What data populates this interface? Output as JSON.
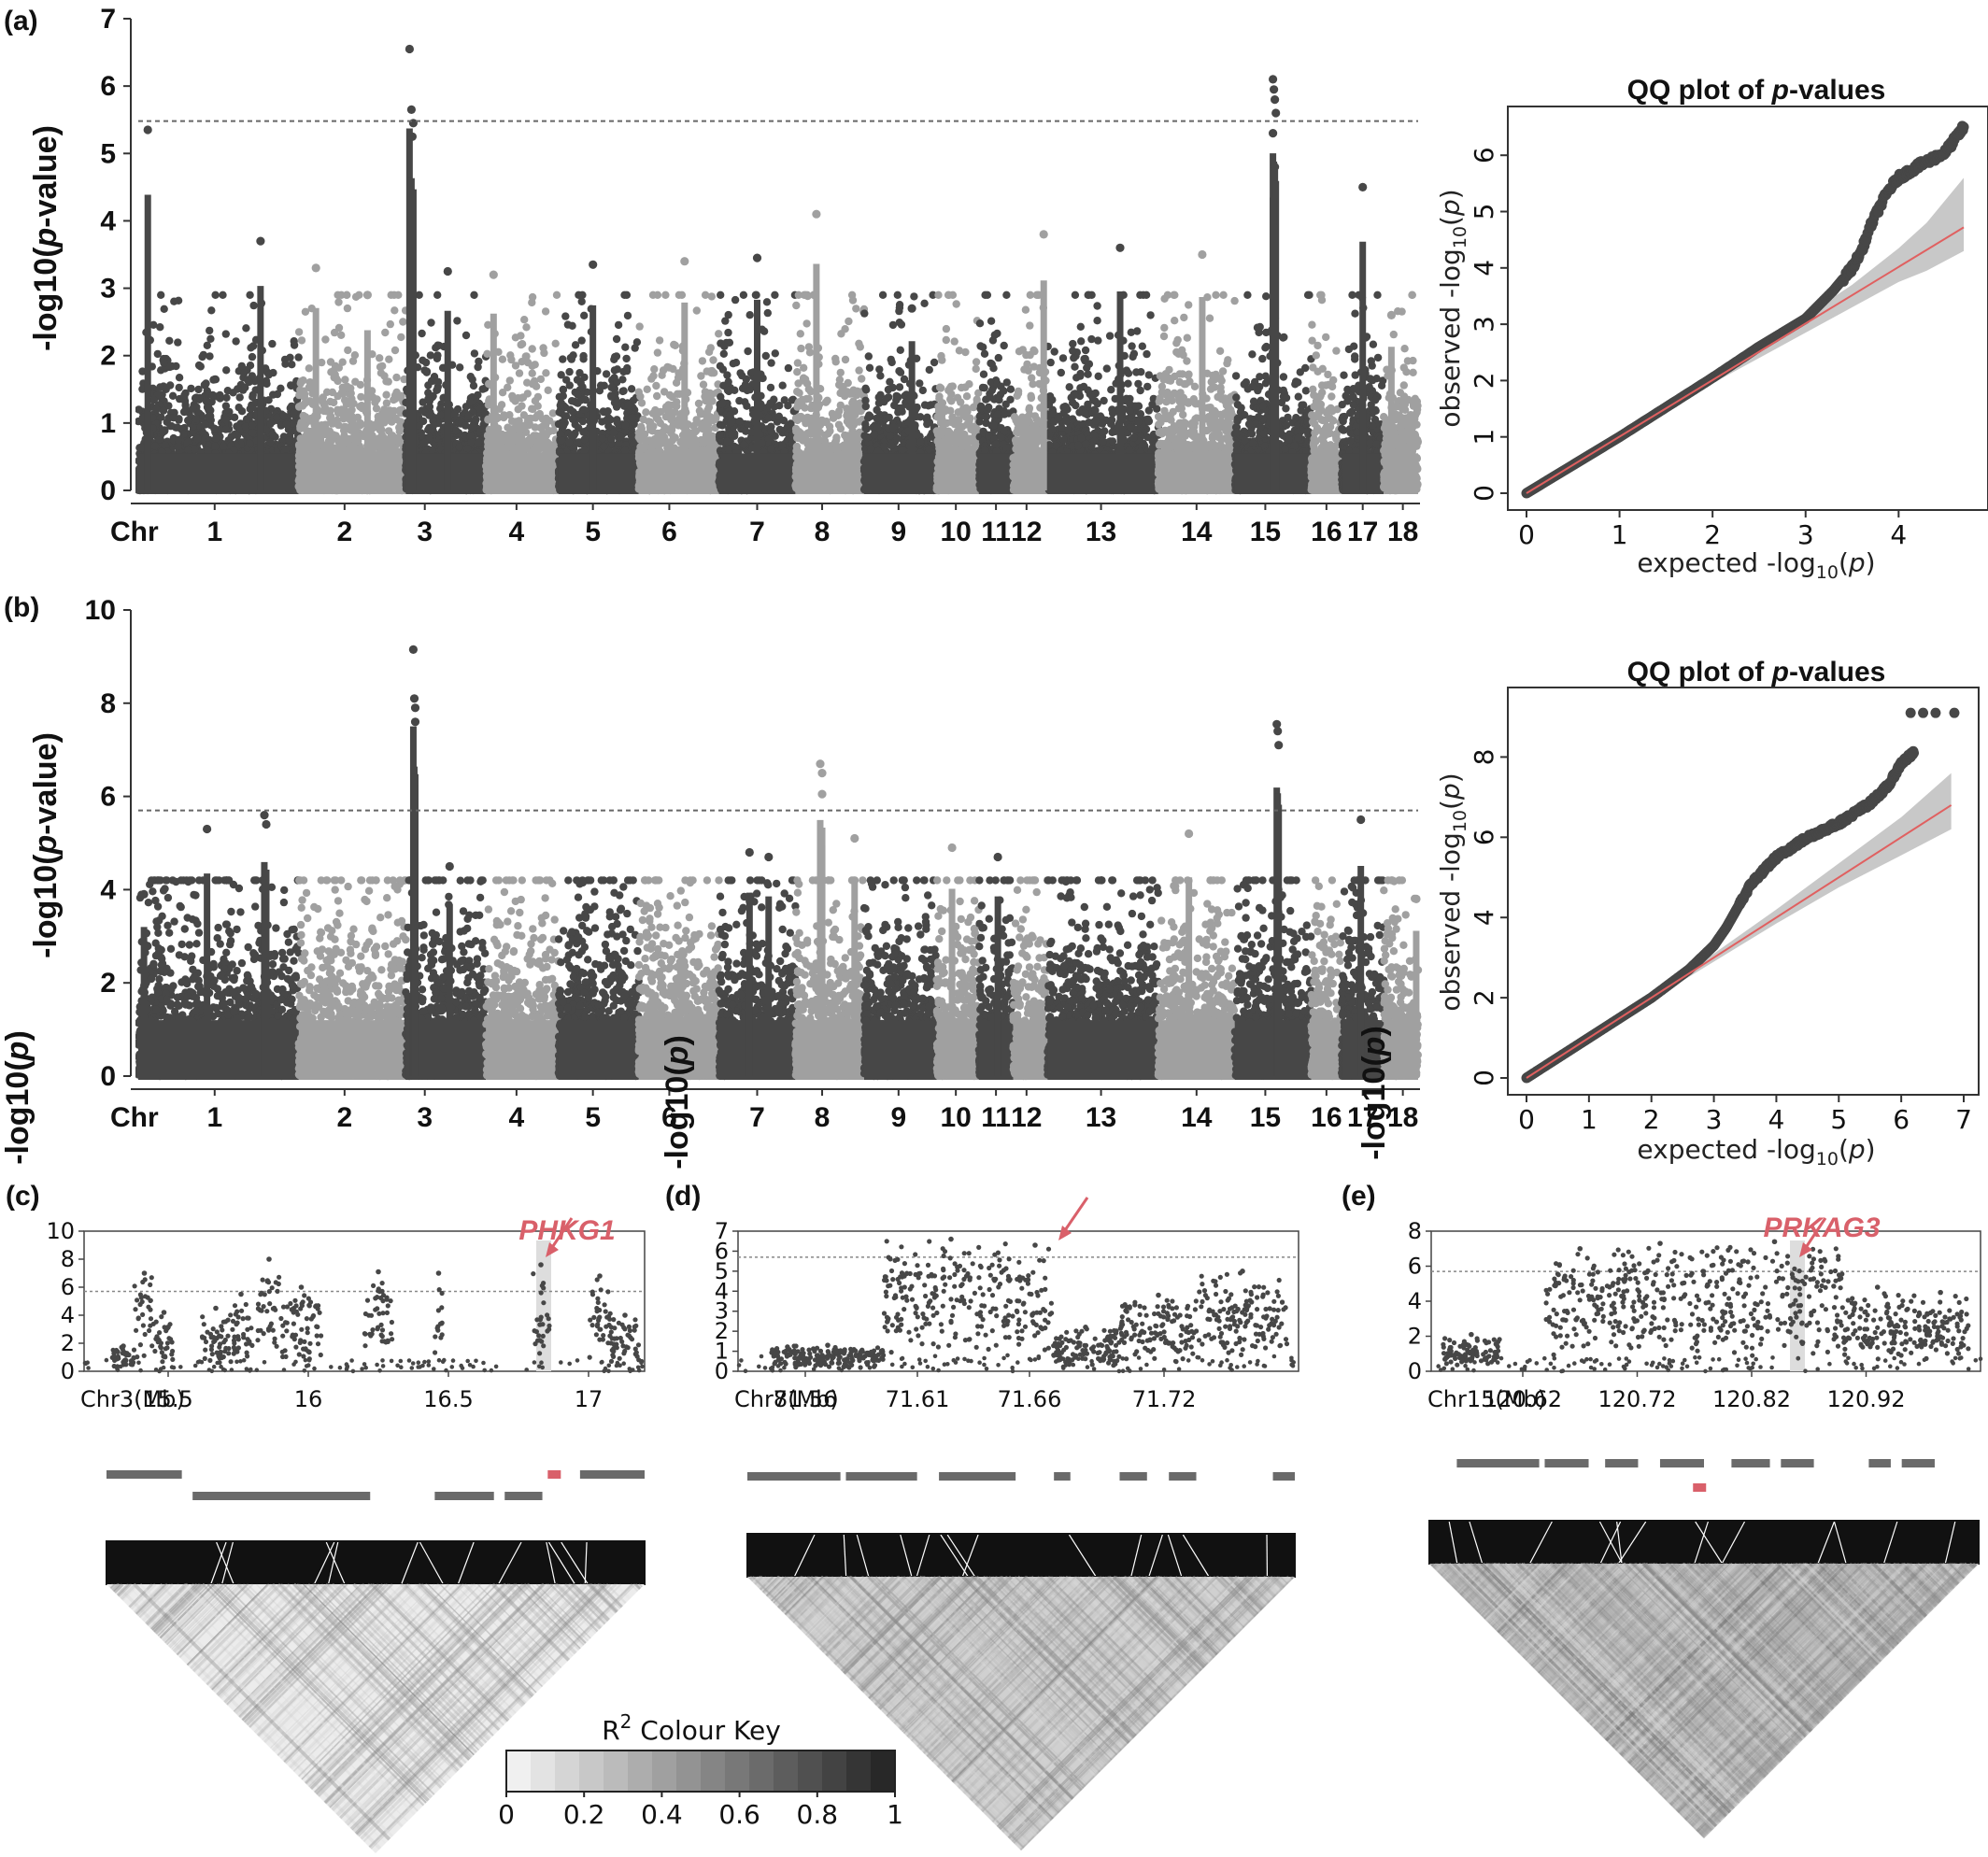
{
  "colors": {
    "dark": "#474747",
    "light": "#a0a0a0",
    "fit_line": "#e06060",
    "ci_band": "#c8c8c8",
    "highlight": "#d9606a",
    "threshold": "#666666"
  },
  "panels": {
    "a": "(a)",
    "b": "(b)",
    "c": "(c)",
    "d": "(d)",
    "e": "(e)"
  },
  "chart_data": [
    {
      "id": "manhattan_a",
      "type": "scatter",
      "subtype": "manhattan",
      "ylabel_pre": "-log10(",
      "ylabel_it": "p",
      "ylabel_post": "-value)",
      "x_first_label": "Chr",
      "chromosomes": [
        "1",
        "2",
        "3",
        "4",
        "5",
        "6",
        "7",
        "8",
        "9",
        "10",
        "11",
        "12",
        "13",
        "14",
        "15",
        "16",
        "17",
        "18"
      ],
      "chrom_spans": [
        [
          0,
          8.4
        ],
        [
          8.4,
          14.0
        ],
        [
          14.0,
          18.2
        ],
        [
          18.2,
          22.0
        ],
        [
          22.0,
          26.2
        ],
        [
          26.2,
          30.4
        ],
        [
          30.4,
          34.4
        ],
        [
          34.4,
          38.0
        ],
        [
          38.0,
          41.8
        ],
        [
          41.8,
          44.0
        ],
        [
          44.0,
          45.8
        ],
        [
          45.8,
          47.6
        ],
        [
          47.6,
          53.4
        ],
        [
          53.4,
          57.4
        ],
        [
          57.4,
          61.4
        ],
        [
          61.4,
          63.0
        ],
        [
          63.0,
          65.2
        ],
        [
          65.2,
          67.0
        ]
      ],
      "chrom_label_x": [
        4.0,
        10.8,
        15.0,
        19.8,
        23.8,
        27.8,
        32.4,
        35.8,
        39.8,
        42.8,
        44.9,
        46.5,
        50.4,
        55.4,
        59.0,
        62.2,
        64.1,
        66.2
      ],
      "ylim": [
        0,
        7
      ],
      "yticks": [
        0,
        1,
        2,
        3,
        4,
        5,
        6,
        7
      ],
      "threshold": 5.48,
      "peaks": [
        {
          "x": 0.5,
          "y": 5.35
        },
        {
          "x": 6.4,
          "y": 3.7
        },
        {
          "x": 9.3,
          "y": 3.3
        },
        {
          "x": 12.0,
          "y": 2.9
        },
        {
          "x": 14.2,
          "y": 6.55
        },
        {
          "x": 14.3,
          "y": 5.65
        },
        {
          "x": 14.4,
          "y": 5.45
        },
        {
          "x": 14.35,
          "y": 5.25
        },
        {
          "x": 16.2,
          "y": 3.25
        },
        {
          "x": 18.6,
          "y": 3.2
        },
        {
          "x": 23.8,
          "y": 3.35
        },
        {
          "x": 28.6,
          "y": 3.4
        },
        {
          "x": 32.4,
          "y": 3.45
        },
        {
          "x": 35.5,
          "y": 4.1
        },
        {
          "x": 40.5,
          "y": 2.7
        },
        {
          "x": 47.4,
          "y": 3.8
        },
        {
          "x": 51.4,
          "y": 3.6
        },
        {
          "x": 55.7,
          "y": 3.5
        },
        {
          "x": 59.4,
          "y": 6.1
        },
        {
          "x": 59.45,
          "y": 5.95
        },
        {
          "x": 59.5,
          "y": 5.8
        },
        {
          "x": 59.55,
          "y": 5.6
        },
        {
          "x": 59.4,
          "y": 5.3
        },
        {
          "x": 59.5,
          "y": 4.8
        },
        {
          "x": 64.1,
          "y": 4.5
        },
        {
          "x": 65.6,
          "y": 2.6
        }
      ]
    },
    {
      "id": "qq_a",
      "type": "scatter",
      "subtype": "qq",
      "title_pre": "QQ plot of ",
      "title_it": "p",
      "title_post": "-values",
      "xlabel_pre": "expected -log",
      "ylabel_pre": "observed -log",
      "label_sub": "10",
      "label_p": "p",
      "xlim": [
        0,
        4.8
      ],
      "ylim": [
        0,
        6.7
      ],
      "xticks": [
        0,
        1,
        2,
        3,
        4
      ],
      "yticks": [
        0,
        1,
        2,
        3,
        4,
        5,
        6
      ],
      "fit_line": {
        "x": [
          0,
          4.7
        ],
        "y": [
          0,
          4.72
        ]
      },
      "observed_curve": {
        "x": [
          0,
          1,
          2,
          2.5,
          3.0,
          3.3,
          3.5,
          3.6,
          3.7,
          3.8,
          3.9,
          4.0,
          4.2,
          4.5,
          4.7
        ],
        "y": [
          0,
          1,
          2.05,
          2.6,
          3.1,
          3.6,
          4.0,
          4.3,
          4.75,
          5.1,
          5.4,
          5.6,
          5.8,
          6.05,
          6.5
        ]
      },
      "ci_band": {
        "x": [
          2.0,
          3.0,
          3.5,
          4.0,
          4.3,
          4.7
        ],
        "lower": [
          1.95,
          2.85,
          3.3,
          3.75,
          3.95,
          4.3
        ],
        "upper": [
          2.05,
          3.15,
          3.7,
          4.35,
          4.8,
          5.6
        ]
      }
    },
    {
      "id": "manhattan_b",
      "type": "scatter",
      "subtype": "manhattan",
      "ylabel_pre": "-log10(",
      "ylabel_it": "p",
      "ylabel_post": "-value)",
      "x_first_label": "Chr",
      "chromosomes": [
        "1",
        "2",
        "3",
        "4",
        "5",
        "6",
        "7",
        "8",
        "9",
        "10",
        "11",
        "12",
        "13",
        "14",
        "15",
        "16",
        "17",
        "18"
      ],
      "ylim": [
        0,
        10
      ],
      "yticks": [
        0,
        2,
        4,
        6,
        8,
        10
      ],
      "threshold": 5.7,
      "peaks": [
        {
          "x": 0.3,
          "y": 3.9
        },
        {
          "x": 3.6,
          "y": 5.3
        },
        {
          "x": 6.6,
          "y": 5.6
        },
        {
          "x": 6.7,
          "y": 5.4
        },
        {
          "x": 14.4,
          "y": 9.15
        },
        {
          "x": 14.45,
          "y": 8.1
        },
        {
          "x": 14.5,
          "y": 7.9
        },
        {
          "x": 14.5,
          "y": 7.6
        },
        {
          "x": 16.3,
          "y": 4.5
        },
        {
          "x": 32.0,
          "y": 4.8
        },
        {
          "x": 33.0,
          "y": 4.7
        },
        {
          "x": 35.7,
          "y": 6.7
        },
        {
          "x": 35.8,
          "y": 6.5
        },
        {
          "x": 35.8,
          "y": 6.05
        },
        {
          "x": 37.5,
          "y": 5.1
        },
        {
          "x": 42.6,
          "y": 4.9
        },
        {
          "x": 45.0,
          "y": 4.7
        },
        {
          "x": 55.0,
          "y": 5.2
        },
        {
          "x": 59.6,
          "y": 7.55
        },
        {
          "x": 59.65,
          "y": 7.4
        },
        {
          "x": 59.7,
          "y": 7.1
        },
        {
          "x": 64.0,
          "y": 5.5
        },
        {
          "x": 66.9,
          "y": 3.8
        }
      ]
    },
    {
      "id": "qq_b",
      "type": "scatter",
      "subtype": "qq",
      "title_pre": "QQ plot of ",
      "title_it": "p",
      "title_post": "-values",
      "xlabel_pre": "expected -log",
      "ylabel_pre": "observed -log",
      "label_sub": "10",
      "label_p": "p",
      "xlim": [
        0,
        7
      ],
      "ylim": [
        0,
        9.5
      ],
      "xticks": [
        0,
        1,
        2,
        3,
        4,
        5,
        6,
        7
      ],
      "yticks": [
        0,
        2,
        4,
        6,
        8
      ],
      "fit_line": {
        "x": [
          0,
          6.8
        ],
        "y": [
          0,
          6.8
        ]
      },
      "observed_curve": {
        "x": [
          0,
          1,
          2,
          2.6,
          3.0,
          3.2,
          3.4,
          3.6,
          4.0,
          4.5,
          5.0,
          5.5,
          5.8,
          6.0,
          6.2
        ],
        "y": [
          0,
          1,
          2.0,
          2.7,
          3.3,
          3.75,
          4.3,
          4.85,
          5.5,
          6.0,
          6.35,
          6.85,
          7.3,
          7.85,
          8.1
        ]
      },
      "extra_points": {
        "x": [
          6.15,
          6.35,
          6.55,
          6.85
        ],
        "y": [
          9.1,
          9.1,
          9.1,
          9.1
        ]
      },
      "ci_band": {
        "x": [
          2.0,
          3.0,
          4.0,
          5.0,
          6.0,
          6.8
        ],
        "lower": [
          1.95,
          2.9,
          3.85,
          4.75,
          5.55,
          6.2
        ],
        "upper": [
          2.05,
          3.1,
          4.2,
          5.35,
          6.5,
          7.6
        ]
      }
    },
    {
      "id": "regional_c",
      "type": "scatter",
      "subtype": "regional",
      "ylabel_pre": "-log10(",
      "ylabel_it": "p",
      "ylabel_post": ")",
      "x_prefix": "Chr3(Mb)",
      "xlim": [
        15.2,
        17.2
      ],
      "xticks": [
        15.5,
        16,
        16.5,
        17
      ],
      "ylim": [
        0,
        10
      ],
      "yticks": [
        0,
        2,
        4,
        6,
        8,
        10
      ],
      "threshold": 5.7,
      "gene": "PHKG1",
      "gene_pos": 16.84,
      "clusters": [
        {
          "x0": 15.3,
          "x1": 15.38,
          "ymax": 1.8
        },
        {
          "x0": 15.38,
          "x1": 15.45,
          "ymax": 7.0
        },
        {
          "x0": 15.45,
          "x1": 15.52,
          "ymax": 4.2
        },
        {
          "x0": 15.62,
          "x1": 15.72,
          "ymax": 4.5
        },
        {
          "x0": 15.72,
          "x1": 15.8,
          "ymax": 5.5
        },
        {
          "x0": 15.82,
          "x1": 15.9,
          "ymax": 8.0
        },
        {
          "x0": 15.9,
          "x1": 16.05,
          "ymax": 6.0
        },
        {
          "x0": 16.2,
          "x1": 16.3,
          "ymax": 7.1
        },
        {
          "x0": 16.45,
          "x1": 16.48,
          "ymax": 7.0
        },
        {
          "x0": 16.8,
          "x1": 16.86,
          "ymax": 7.6
        },
        {
          "x0": 17.0,
          "x1": 17.08,
          "ymax": 6.8
        },
        {
          "x0": 17.08,
          "x1": 17.18,
          "ymax": 4.0
        }
      ]
    },
    {
      "id": "regional_d",
      "type": "scatter",
      "subtype": "regional",
      "ylabel_pre": "-log10(",
      "ylabel_it": "p",
      "ylabel_post": ")",
      "x_prefix": "Chr8(Mb)",
      "xlim": [
        71.53,
        71.78
      ],
      "xticks": [
        71.56,
        71.61,
        71.66,
        71.72
      ],
      "ylim": [
        0,
        7
      ],
      "yticks": [
        0,
        1,
        2,
        3,
        4,
        5,
        6,
        7
      ],
      "threshold": 5.7,
      "clusters": [
        {
          "x0": 71.545,
          "x1": 71.595,
          "ymax": 1.3
        },
        {
          "x0": 71.595,
          "x1": 71.655,
          "ymax": 6.6
        },
        {
          "x0": 71.655,
          "x1": 71.67,
          "ymax": 6.3
        },
        {
          "x0": 71.67,
          "x1": 71.7,
          "ymax": 2.2
        },
        {
          "x0": 71.7,
          "x1": 71.735,
          "ymax": 3.8
        },
        {
          "x0": 71.735,
          "x1": 71.775,
          "ymax": 5.0
        }
      ]
    },
    {
      "id": "regional_e",
      "type": "scatter",
      "subtype": "regional",
      "ylabel_pre": "-log10(",
      "ylabel_it": "p",
      "ylabel_post": ")",
      "x_prefix": "Chr15(Mb)",
      "xlim": [
        120.54,
        121.02
      ],
      "xticks": [
        120.62,
        120.72,
        120.82,
        120.92
      ],
      "ylim": [
        0,
        8
      ],
      "yticks": [
        0,
        2,
        4,
        6,
        8
      ],
      "threshold": 5.7,
      "gene": "PRKAG3",
      "gene_pos": 120.86,
      "clusters": [
        {
          "x0": 120.55,
          "x1": 120.6,
          "ymax": 2.1
        },
        {
          "x0": 120.64,
          "x1": 120.7,
          "ymax": 7.0
        },
        {
          "x0": 120.7,
          "x1": 120.78,
          "ymax": 7.3
        },
        {
          "x0": 120.78,
          "x1": 120.9,
          "ymax": 7.4
        },
        {
          "x0": 120.9,
          "x1": 120.96,
          "ymax": 4.8
        },
        {
          "x0": 120.96,
          "x1": 121.01,
          "ymax": 4.5
        }
      ]
    }
  ],
  "color_key": {
    "title_pre": "R",
    "title_sup": "2",
    "title_post": " Colour Key",
    "ticks": [
      "0",
      "0.2",
      "0.4",
      "0.6",
      "0.8",
      "1"
    ],
    "range": [
      0,
      1
    ],
    "steps": 16
  }
}
